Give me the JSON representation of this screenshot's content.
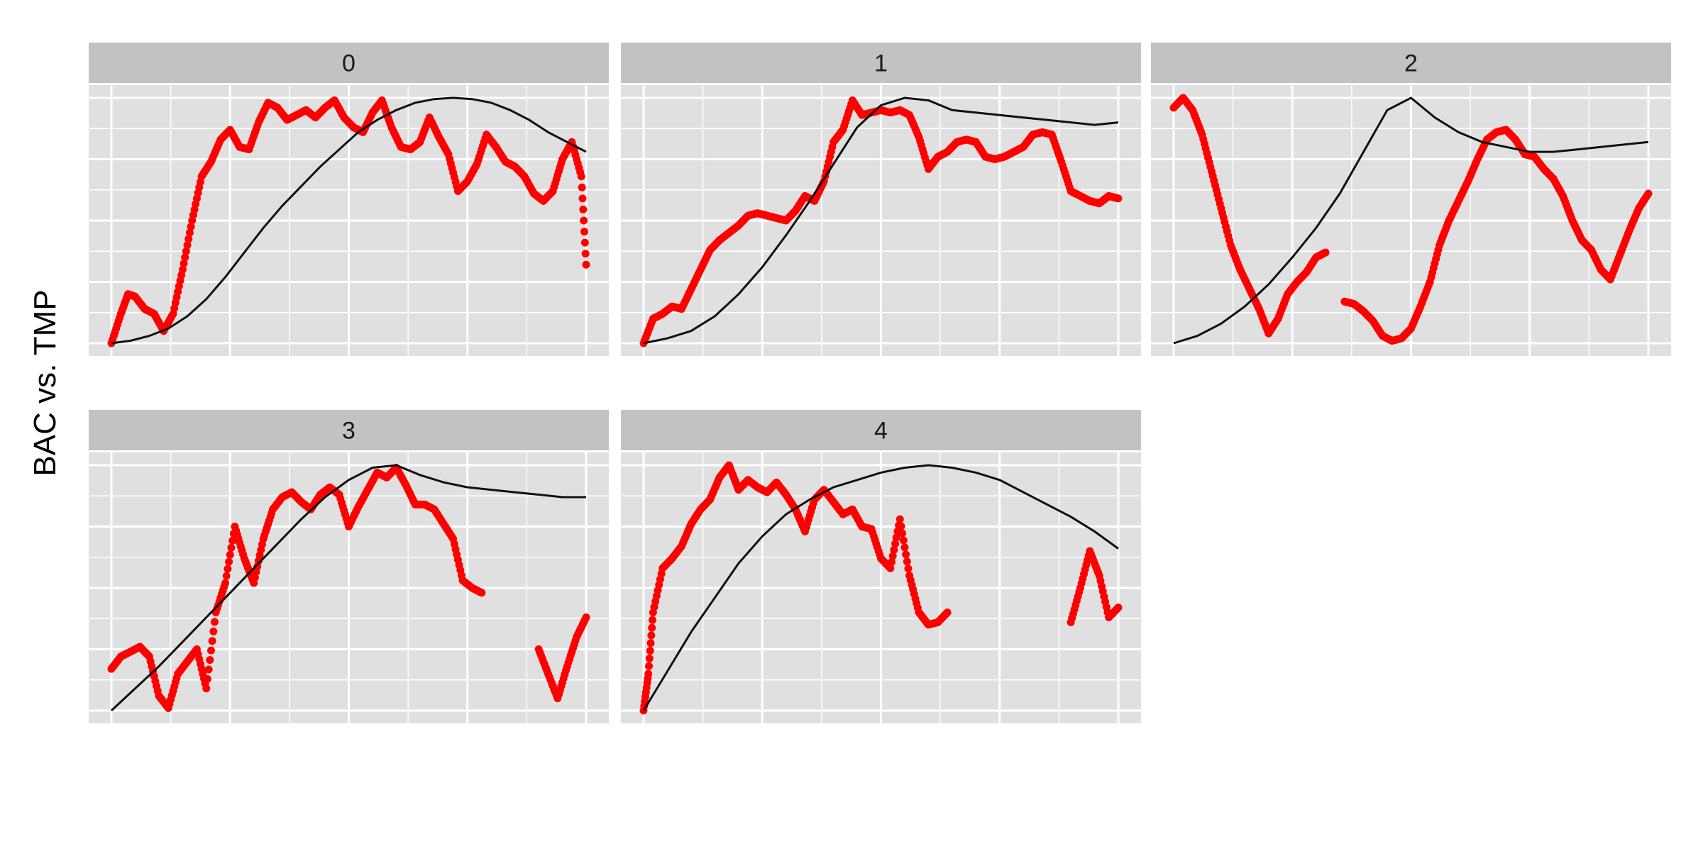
{
  "chart_data": {
    "type": "scatter",
    "ylabel": "BAC vs. TMP",
    "xlabel": "",
    "title": "",
    "x_range": [
      0,
      1
    ],
    "y_range": [
      0,
      1
    ],
    "grid": true,
    "legend": "none",
    "colors": {
      "points": "#ff0000",
      "line": "#111111",
      "panel_bg": "#e0e0e0",
      "strip_bg": "#c2c2c2",
      "grid": "#ffffff"
    },
    "panels": [
      {
        "label": "0",
        "points_x": [
          0.0,
          0.02,
          0.035,
          0.05,
          0.07,
          0.09,
          0.11,
          0.13,
          0.15,
          0.17,
          0.19,
          0.21,
          0.23,
          0.25,
          0.27,
          0.29,
          0.31,
          0.33,
          0.35,
          0.37,
          0.39,
          0.41,
          0.43,
          0.45,
          0.47,
          0.49,
          0.51,
          0.53,
          0.55,
          0.57,
          0.59,
          0.61,
          0.63,
          0.65,
          0.67,
          0.69,
          0.71,
          0.73,
          0.75,
          0.77,
          0.79,
          0.81,
          0.83,
          0.85,
          0.87,
          0.89,
          0.91,
          0.93,
          0.95,
          0.97,
          0.99,
          1.0
        ],
        "points_y": [
          0.0,
          0.12,
          0.2,
          0.19,
          0.14,
          0.12,
          0.05,
          0.12,
          0.3,
          0.5,
          0.68,
          0.74,
          0.83,
          0.87,
          0.8,
          0.79,
          0.9,
          0.98,
          0.96,
          0.91,
          0.93,
          0.95,
          0.92,
          0.96,
          0.99,
          0.92,
          0.88,
          0.86,
          0.94,
          0.99,
          0.88,
          0.8,
          0.79,
          0.82,
          0.92,
          0.84,
          0.77,
          0.62,
          0.66,
          0.73,
          0.85,
          0.8,
          0.74,
          0.72,
          0.68,
          0.61,
          0.58,
          0.62,
          0.75,
          0.82,
          0.68,
          0.32
        ],
        "line_x": [
          0.0,
          0.04,
          0.08,
          0.12,
          0.16,
          0.2,
          0.24,
          0.28,
          0.32,
          0.36,
          0.4,
          0.44,
          0.48,
          0.52,
          0.56,
          0.6,
          0.64,
          0.68,
          0.72,
          0.76,
          0.8,
          0.84,
          0.88,
          0.92,
          0.96,
          1.0
        ],
        "line_y": [
          0.0,
          0.01,
          0.03,
          0.06,
          0.11,
          0.18,
          0.27,
          0.37,
          0.47,
          0.56,
          0.64,
          0.72,
          0.79,
          0.86,
          0.91,
          0.95,
          0.98,
          0.995,
          1.0,
          0.995,
          0.98,
          0.95,
          0.91,
          0.86,
          0.82,
          0.78
        ]
      },
      {
        "label": "1",
        "points_x": [
          0.0,
          0.02,
          0.04,
          0.06,
          0.08,
          0.1,
          0.12,
          0.14,
          0.16,
          0.18,
          0.2,
          0.22,
          0.24,
          0.26,
          0.28,
          0.3,
          0.32,
          0.34,
          0.36,
          0.38,
          0.4,
          0.42,
          0.44,
          0.46,
          0.48,
          0.5,
          0.52,
          0.54,
          0.56,
          0.58,
          0.6,
          0.62,
          0.64,
          0.66,
          0.68,
          0.7,
          0.72,
          0.74,
          0.76,
          0.78,
          0.8,
          0.82,
          0.84,
          0.86,
          0.88,
          0.9,
          0.92,
          0.94,
          0.96,
          0.98,
          1.0
        ],
        "points_y": [
          0.0,
          0.1,
          0.12,
          0.15,
          0.14,
          0.22,
          0.3,
          0.38,
          0.42,
          0.45,
          0.48,
          0.52,
          0.53,
          0.52,
          0.51,
          0.5,
          0.54,
          0.6,
          0.58,
          0.66,
          0.82,
          0.87,
          0.99,
          0.93,
          0.94,
          0.95,
          0.94,
          0.95,
          0.93,
          0.84,
          0.71,
          0.76,
          0.78,
          0.82,
          0.83,
          0.82,
          0.76,
          0.75,
          0.76,
          0.78,
          0.8,
          0.85,
          0.86,
          0.85,
          0.74,
          0.62,
          0.6,
          0.58,
          0.57,
          0.6,
          0.59
        ],
        "line_x": [
          0.0,
          0.05,
          0.1,
          0.15,
          0.2,
          0.25,
          0.3,
          0.35,
          0.4,
          0.45,
          0.5,
          0.55,
          0.6,
          0.65,
          0.7,
          0.75,
          0.8,
          0.85,
          0.9,
          0.95,
          1.0
        ],
        "line_y": [
          0.0,
          0.02,
          0.05,
          0.11,
          0.2,
          0.31,
          0.44,
          0.58,
          0.73,
          0.88,
          0.97,
          1.0,
          0.99,
          0.95,
          0.94,
          0.93,
          0.92,
          0.91,
          0.9,
          0.89,
          0.9
        ],
        "note": "line reaches peak near x=0.62 then flattens"
      },
      {
        "label": "2",
        "points_x": [
          0.0,
          0.02,
          0.04,
          0.06,
          0.08,
          0.1,
          0.12,
          0.14,
          0.16,
          0.18,
          0.2,
          0.22,
          0.24,
          0.26,
          0.28,
          0.3,
          0.32,
          0.34,
          0.36,
          0.38,
          0.4,
          0.42,
          0.44,
          0.46,
          0.48,
          0.5,
          0.52,
          0.54,
          0.56,
          0.58,
          0.6,
          0.62,
          0.64,
          0.66,
          0.68,
          0.7,
          0.72,
          0.74,
          0.76,
          0.78,
          0.8,
          0.82,
          0.84,
          0.86,
          0.88,
          0.9,
          0.92,
          0.94,
          0.96,
          0.98,
          1.0
        ],
        "points_y": [
          0.96,
          1.0,
          0.95,
          0.85,
          0.7,
          0.55,
          0.4,
          0.3,
          0.22,
          0.14,
          0.04,
          0.1,
          0.2,
          0.25,
          0.29,
          0.35,
          0.37,
          null,
          0.17,
          0.16,
          0.13,
          0.09,
          0.03,
          0.01,
          0.02,
          0.06,
          0.15,
          0.25,
          0.4,
          0.5,
          0.58,
          0.66,
          0.75,
          0.83,
          0.86,
          0.87,
          0.83,
          0.77,
          0.76,
          0.71,
          0.67,
          0.6,
          0.5,
          0.42,
          0.38,
          0.3,
          0.26,
          0.36,
          0.46,
          0.55,
          0.61
        ],
        "line_x": [
          0.0,
          0.05,
          0.1,
          0.15,
          0.2,
          0.25,
          0.3,
          0.35,
          0.4,
          0.45,
          0.5,
          0.55,
          0.6,
          0.65,
          0.7,
          0.75,
          0.8,
          0.85,
          0.9,
          0.95,
          1.0
        ],
        "line_y": [
          0.0,
          0.03,
          0.08,
          0.15,
          0.24,
          0.35,
          0.47,
          0.61,
          0.78,
          0.95,
          1.0,
          0.92,
          0.86,
          0.82,
          0.8,
          0.78,
          0.78,
          0.79,
          0.8,
          0.81,
          0.82
        ]
      },
      {
        "label": "3",
        "points_x": [
          0.0,
          0.02,
          0.04,
          0.06,
          0.08,
          0.1,
          0.12,
          0.14,
          0.16,
          0.18,
          0.2,
          0.22,
          0.24,
          0.26,
          0.28,
          0.3,
          0.32,
          0.34,
          0.36,
          0.38,
          0.4,
          0.42,
          0.44,
          0.46,
          0.48,
          0.5,
          0.52,
          0.54,
          0.56,
          0.58,
          0.6,
          0.62,
          0.64,
          0.66,
          0.68,
          0.7,
          0.72,
          0.74,
          0.76,
          0.78,
          0.8,
          0.82,
          0.84,
          0.86,
          0.88,
          0.9,
          0.92,
          0.94,
          0.96,
          0.98,
          1.0
        ],
        "points_y": [
          0.17,
          0.22,
          0.24,
          0.26,
          0.22,
          0.06,
          0.01,
          0.15,
          0.2,
          0.25,
          0.09,
          0.4,
          0.52,
          0.75,
          0.62,
          0.52,
          0.7,
          0.82,
          0.87,
          0.89,
          0.85,
          0.82,
          0.88,
          0.91,
          0.88,
          0.75,
          0.83,
          0.9,
          0.97,
          0.95,
          0.99,
          0.92,
          0.84,
          0.84,
          0.82,
          0.76,
          0.7,
          0.53,
          0.5,
          0.48,
          null,
          null,
          null,
          null,
          null,
          0.25,
          0.15,
          0.05,
          0.18,
          0.3,
          0.38
        ],
        "line_x": [
          0.0,
          0.05,
          0.1,
          0.15,
          0.2,
          0.25,
          0.3,
          0.35,
          0.4,
          0.45,
          0.5,
          0.55,
          0.6,
          0.65,
          0.7,
          0.75,
          0.8,
          0.85,
          0.9,
          0.95,
          1.0
        ],
        "line_y": [
          0.0,
          0.09,
          0.18,
          0.28,
          0.38,
          0.48,
          0.58,
          0.68,
          0.78,
          0.87,
          0.94,
          0.99,
          1.0,
          0.96,
          0.93,
          0.91,
          0.9,
          0.89,
          0.88,
          0.87,
          0.87
        ]
      },
      {
        "label": "4",
        "points_x": [
          0.0,
          0.01,
          0.02,
          0.04,
          0.06,
          0.08,
          0.1,
          0.12,
          0.14,
          0.16,
          0.18,
          0.2,
          0.22,
          0.24,
          0.26,
          0.28,
          0.3,
          0.32,
          0.34,
          0.36,
          0.38,
          0.4,
          0.42,
          0.44,
          0.46,
          0.48,
          0.5,
          0.52,
          0.54,
          0.56,
          0.58,
          0.6,
          0.62,
          0.64,
          0.66,
          0.68,
          0.7,
          0.72,
          0.74,
          0.76,
          0.78,
          0.8,
          0.82,
          0.84,
          0.86,
          0.88,
          0.9,
          0.92,
          0.94,
          0.96,
          0.98,
          1.0
        ],
        "points_y": [
          0.0,
          0.15,
          0.4,
          0.58,
          0.62,
          0.67,
          0.76,
          0.82,
          0.86,
          0.95,
          1.0,
          0.9,
          0.94,
          0.91,
          0.89,
          0.93,
          0.88,
          0.82,
          0.73,
          0.86,
          0.9,
          0.85,
          0.8,
          0.82,
          0.75,
          0.74,
          0.62,
          0.58,
          0.78,
          0.55,
          0.4,
          0.35,
          0.36,
          0.4,
          null,
          null,
          null,
          null,
          null,
          null,
          null,
          null,
          null,
          null,
          null,
          null,
          0.36,
          0.5,
          0.65,
          0.55,
          0.38,
          0.42
        ],
        "line_x": [
          0.0,
          0.05,
          0.1,
          0.15,
          0.2,
          0.25,
          0.3,
          0.35,
          0.4,
          0.45,
          0.5,
          0.55,
          0.6,
          0.65,
          0.7,
          0.75,
          0.8,
          0.85,
          0.9,
          0.95,
          1.0
        ],
        "line_y": [
          0.0,
          0.16,
          0.32,
          0.46,
          0.6,
          0.71,
          0.8,
          0.86,
          0.91,
          0.94,
          0.97,
          0.99,
          1.0,
          0.99,
          0.97,
          0.94,
          0.89,
          0.84,
          0.79,
          0.73,
          0.66
        ]
      }
    ]
  }
}
